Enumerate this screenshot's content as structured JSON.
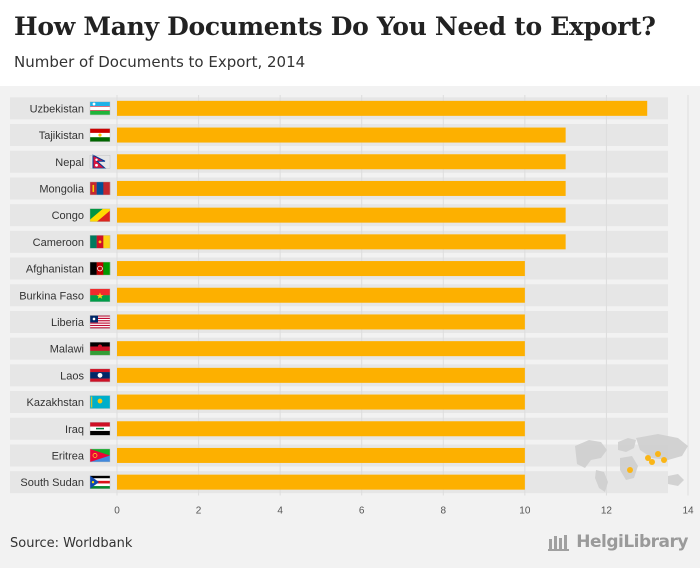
{
  "header": {
    "title": "How Many Documents Do You Need to Export?",
    "subtitle": "Number of Documents to Export, 2014"
  },
  "footer": {
    "source": "Source: Worldbank",
    "brand": "HelgiLibrary"
  },
  "colors": {
    "bar": "#FDB000",
    "row_band": "#e6e6e6",
    "grid": "#dddddd"
  },
  "chart_data": {
    "type": "bar",
    "orientation": "horizontal",
    "title": "How Many Documents Do You Need to Export?",
    "subtitle": "Number of Documents to Export, 2014",
    "xlabel": "",
    "ylabel": "",
    "xlim": [
      0,
      14
    ],
    "xticks": [
      0,
      2,
      4,
      6,
      8,
      10,
      12,
      14
    ],
    "grid": true,
    "legend": "none",
    "categories": [
      "Uzbekistan",
      "Tajikistan",
      "Nepal",
      "Mongolia",
      "Congo",
      "Cameroon",
      "Afghanistan",
      "Burkina Faso",
      "Liberia",
      "Malawi",
      "Laos",
      "Kazakhstan",
      "Iraq",
      "Eritrea",
      "South Sudan"
    ],
    "values": [
      13,
      11,
      11,
      11,
      11,
      11,
      10,
      10,
      10,
      10,
      10,
      10,
      10,
      10,
      10
    ],
    "flag_icons": [
      "uzbekistan-flag-icon",
      "tajikistan-flag-icon",
      "nepal-flag-icon",
      "mongolia-flag-icon",
      "congo-flag-icon",
      "cameroon-flag-icon",
      "afghanistan-flag-icon",
      "burkina-faso-flag-icon",
      "liberia-flag-icon",
      "malawi-flag-icon",
      "laos-flag-icon",
      "kazakhstan-flag-icon",
      "iraq-flag-icon",
      "eritrea-flag-icon",
      "south-sudan-flag-icon"
    ]
  }
}
